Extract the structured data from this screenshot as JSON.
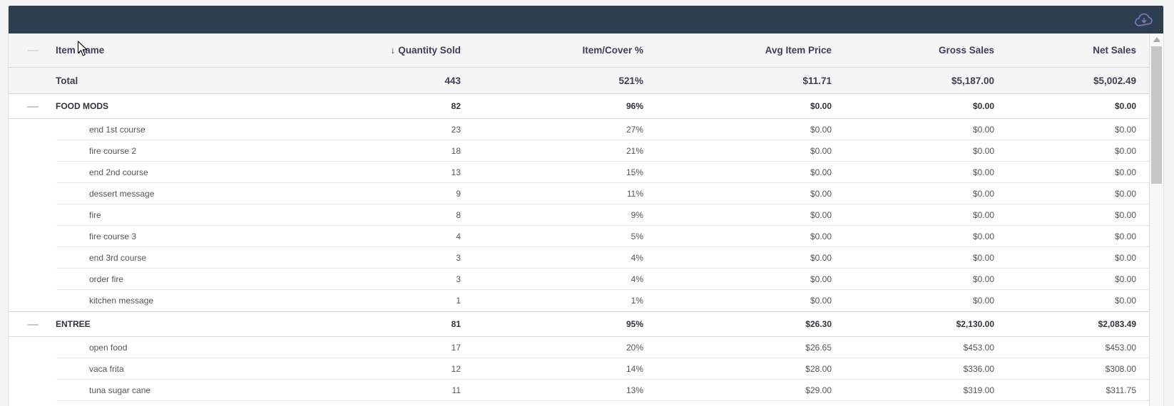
{
  "toolbar": {
    "download_icon": "cloud-download-icon"
  },
  "colors": {
    "topbar_bg": "#2d3e50",
    "icon": "#8379bd",
    "page_bg": "#f4f4f4",
    "header_bg": "#f5f5f6",
    "row_bg": "#ffffff",
    "border_strong": "#d4d4d4",
    "border_light": "#e7e7e7",
    "header_text": "#3e3e56",
    "group_text": "#32323a",
    "item_text": "#55555a",
    "thumb": "#c6c6c6"
  },
  "table": {
    "columns": [
      "Item Name",
      "Quantity Sold",
      "Item/Cover %",
      "Avg Item Price",
      "Gross Sales",
      "Net Sales"
    ],
    "sort_column": "Quantity Sold",
    "sort_indicator": "↓",
    "total": {
      "name": "Total",
      "qty": "443",
      "cover": "521%",
      "avg": "$11.71",
      "gross": "$5,187.00",
      "net": "$5,002.49"
    },
    "groups": [
      {
        "name": "FOOD MODS",
        "qty": "82",
        "cover": "96%",
        "avg": "$0.00",
        "gross": "$0.00",
        "net": "$0.00",
        "items": [
          {
            "name": "end 1st course",
            "qty": "23",
            "cover": "27%",
            "avg": "$0.00",
            "gross": "$0.00",
            "net": "$0.00"
          },
          {
            "name": "fire course 2",
            "qty": "18",
            "cover": "21%",
            "avg": "$0.00",
            "gross": "$0.00",
            "net": "$0.00"
          },
          {
            "name": "end 2nd course",
            "qty": "13",
            "cover": "15%",
            "avg": "$0.00",
            "gross": "$0.00",
            "net": "$0.00"
          },
          {
            "name": "dessert message",
            "qty": "9",
            "cover": "11%",
            "avg": "$0.00",
            "gross": "$0.00",
            "net": "$0.00"
          },
          {
            "name": "fire",
            "qty": "8",
            "cover": "9%",
            "avg": "$0.00",
            "gross": "$0.00",
            "net": "$0.00"
          },
          {
            "name": "fire course 3",
            "qty": "4",
            "cover": "5%",
            "avg": "$0.00",
            "gross": "$0.00",
            "net": "$0.00"
          },
          {
            "name": "end 3rd course",
            "qty": "3",
            "cover": "4%",
            "avg": "$0.00",
            "gross": "$0.00",
            "net": "$0.00"
          },
          {
            "name": "order fire",
            "qty": "3",
            "cover": "4%",
            "avg": "$0.00",
            "gross": "$0.00",
            "net": "$0.00"
          },
          {
            "name": "kitchen message",
            "qty": "1",
            "cover": "1%",
            "avg": "$0.00",
            "gross": "$0.00",
            "net": "$0.00"
          }
        ]
      },
      {
        "name": "ENTREE",
        "qty": "81",
        "cover": "95%",
        "avg": "$26.30",
        "gross": "$2,130.00",
        "net": "$2,083.49",
        "items": [
          {
            "name": "open food",
            "qty": "17",
            "cover": "20%",
            "avg": "$26.65",
            "gross": "$453.00",
            "net": "$453.00"
          },
          {
            "name": "vaca frita",
            "qty": "12",
            "cover": "14%",
            "avg": "$28.00",
            "gross": "$336.00",
            "net": "$308.00"
          },
          {
            "name": "tuna sugar cane",
            "qty": "11",
            "cover": "13%",
            "avg": "$29.00",
            "gross": "$319.00",
            "net": "$311.75"
          }
        ]
      }
    ]
  }
}
